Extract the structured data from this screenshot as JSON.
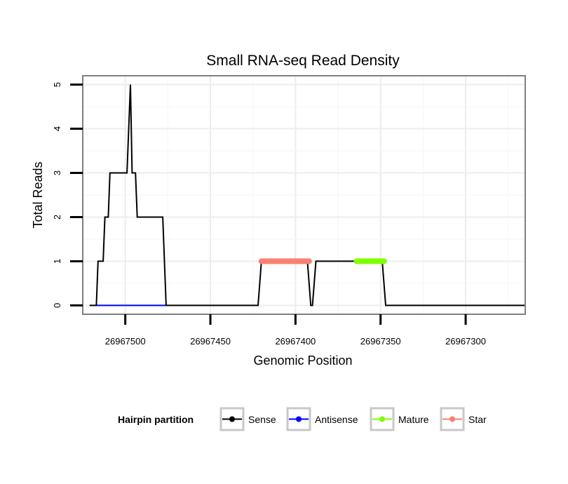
{
  "chart_data": {
    "type": "line",
    "title": "Small RNA-seq Read Density",
    "xlabel": "Genomic Position",
    "ylabel": "Total Reads",
    "x_reversed": true,
    "xlim": [
      26967525,
      26967265
    ],
    "ylim": [
      -0.2,
      5.2
    ],
    "x_ticks": [
      26967500,
      26967450,
      26967400,
      26967350,
      26967300
    ],
    "x_tick_labels": [
      "26967500",
      "26967450",
      "26967400",
      "26967350",
      "26967300"
    ],
    "y_ticks": [
      0,
      1,
      2,
      3,
      4,
      5
    ],
    "y_tick_labels": [
      "0",
      "1",
      "2",
      "3",
      "4",
      "5"
    ],
    "grid": true,
    "legend": {
      "title": "Hairpin partition",
      "position": "bottom",
      "entries": [
        {
          "name": "Sense",
          "color": "#000000"
        },
        {
          "name": "Antisense",
          "color": "#0000ff"
        },
        {
          "name": "Mature",
          "color": "#7fff00"
        },
        {
          "name": "Star",
          "color": "#fa8072"
        }
      ]
    },
    "series": [
      {
        "name": "Sense",
        "color": "#000000",
        "style": "line",
        "x": [
          26967521,
          26967517,
          26967516,
          26967513,
          26967512,
          26967510,
          26967509,
          26967499,
          26967497,
          26967496,
          26967494,
          26967493,
          26967491,
          26967490,
          26967478,
          26967476,
          26967474,
          26967422,
          26967420,
          26967408,
          26967393,
          26967391,
          26967390,
          26967388,
          26967364,
          26967363,
          26967361,
          26967349,
          26967347,
          26967343,
          26967265
        ],
        "y": [
          0,
          0,
          1,
          1,
          2,
          2,
          3,
          3,
          5,
          3,
          3,
          2,
          2,
          2,
          2,
          0,
          0,
          0,
          1,
          1,
          1,
          0,
          0,
          1,
          1,
          1,
          1,
          1,
          0,
          0,
          0
        ]
      },
      {
        "name": "Antisense",
        "color": "#0000ff",
        "style": "line",
        "x": [
          26967517,
          26967476
        ],
        "y": [
          0,
          0
        ]
      },
      {
        "name": "Mature",
        "color": "#7fff00",
        "style": "points",
        "x": [
          26967364,
          26967362,
          26967360,
          26967358,
          26967356,
          26967354,
          26967352,
          26967350,
          26967348
        ],
        "y": [
          1,
          1,
          1,
          1,
          1,
          1,
          1,
          1,
          1
        ]
      },
      {
        "name": "Star",
        "color": "#fa8072",
        "style": "points",
        "x": [
          26967420,
          26967418,
          26967416,
          26967414,
          26967412,
          26967410,
          26967408,
          26967406,
          26967404,
          26967402,
          26967400,
          26967398,
          26967396,
          26967394,
          26967392
        ],
        "y": [
          1,
          1,
          1,
          1,
          1,
          1,
          1,
          1,
          1,
          1,
          1,
          1,
          1,
          1,
          1
        ]
      }
    ]
  }
}
